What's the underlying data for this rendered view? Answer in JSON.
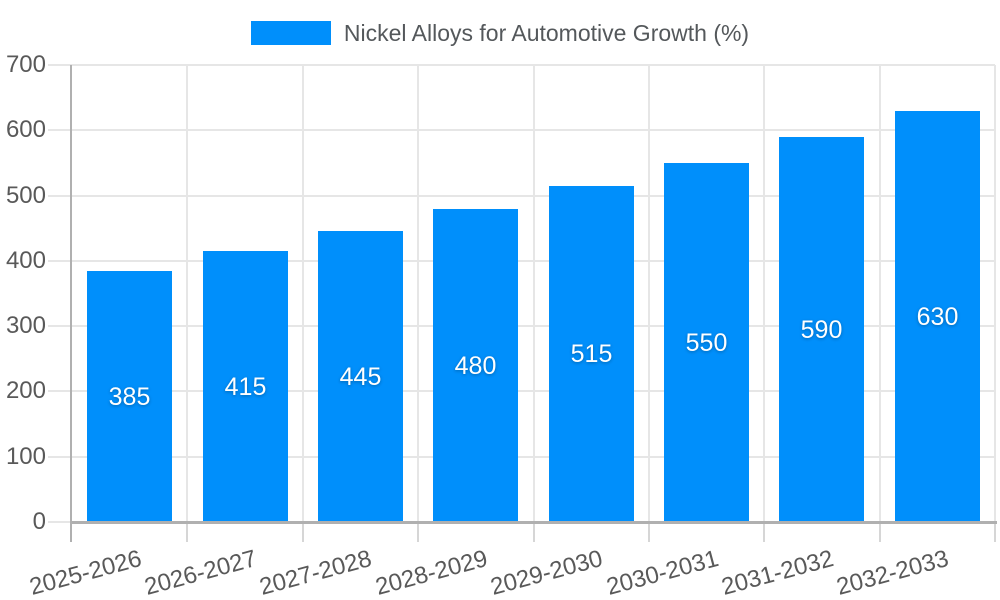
{
  "chart_data": {
    "type": "bar",
    "title": "Nickel Alloys for Automotive Growth (%)",
    "categories": [
      "2025-2026",
      "2026-2027",
      "2027-2028",
      "2028-2029",
      "2029-2030",
      "2030-2031",
      "2031-2032",
      "2032-2033"
    ],
    "series": [
      {
        "name": "Nickel Alloys for Automotive Growth (%)",
        "values": [
          385,
          415,
          445,
          480,
          515,
          550,
          590,
          630
        ]
      }
    ],
    "xlabel": "",
    "ylabel": "",
    "ylim": [
      0,
      700
    ],
    "yticks": [
      0,
      100,
      200,
      300,
      400,
      500,
      600,
      700
    ],
    "grid": true,
    "legend_position": "top",
    "data_labels": "values shown in white, centered inside bars"
  },
  "colors": {
    "bar": "#008FFB",
    "grid": "#e6e6e6",
    "axis": "#b0b0b0",
    "minor_tick": "#d6d6d6",
    "tick_label": "#595959",
    "legend_text": "#54585b",
    "data_label": "#ffffff",
    "background": "#ffffff"
  }
}
